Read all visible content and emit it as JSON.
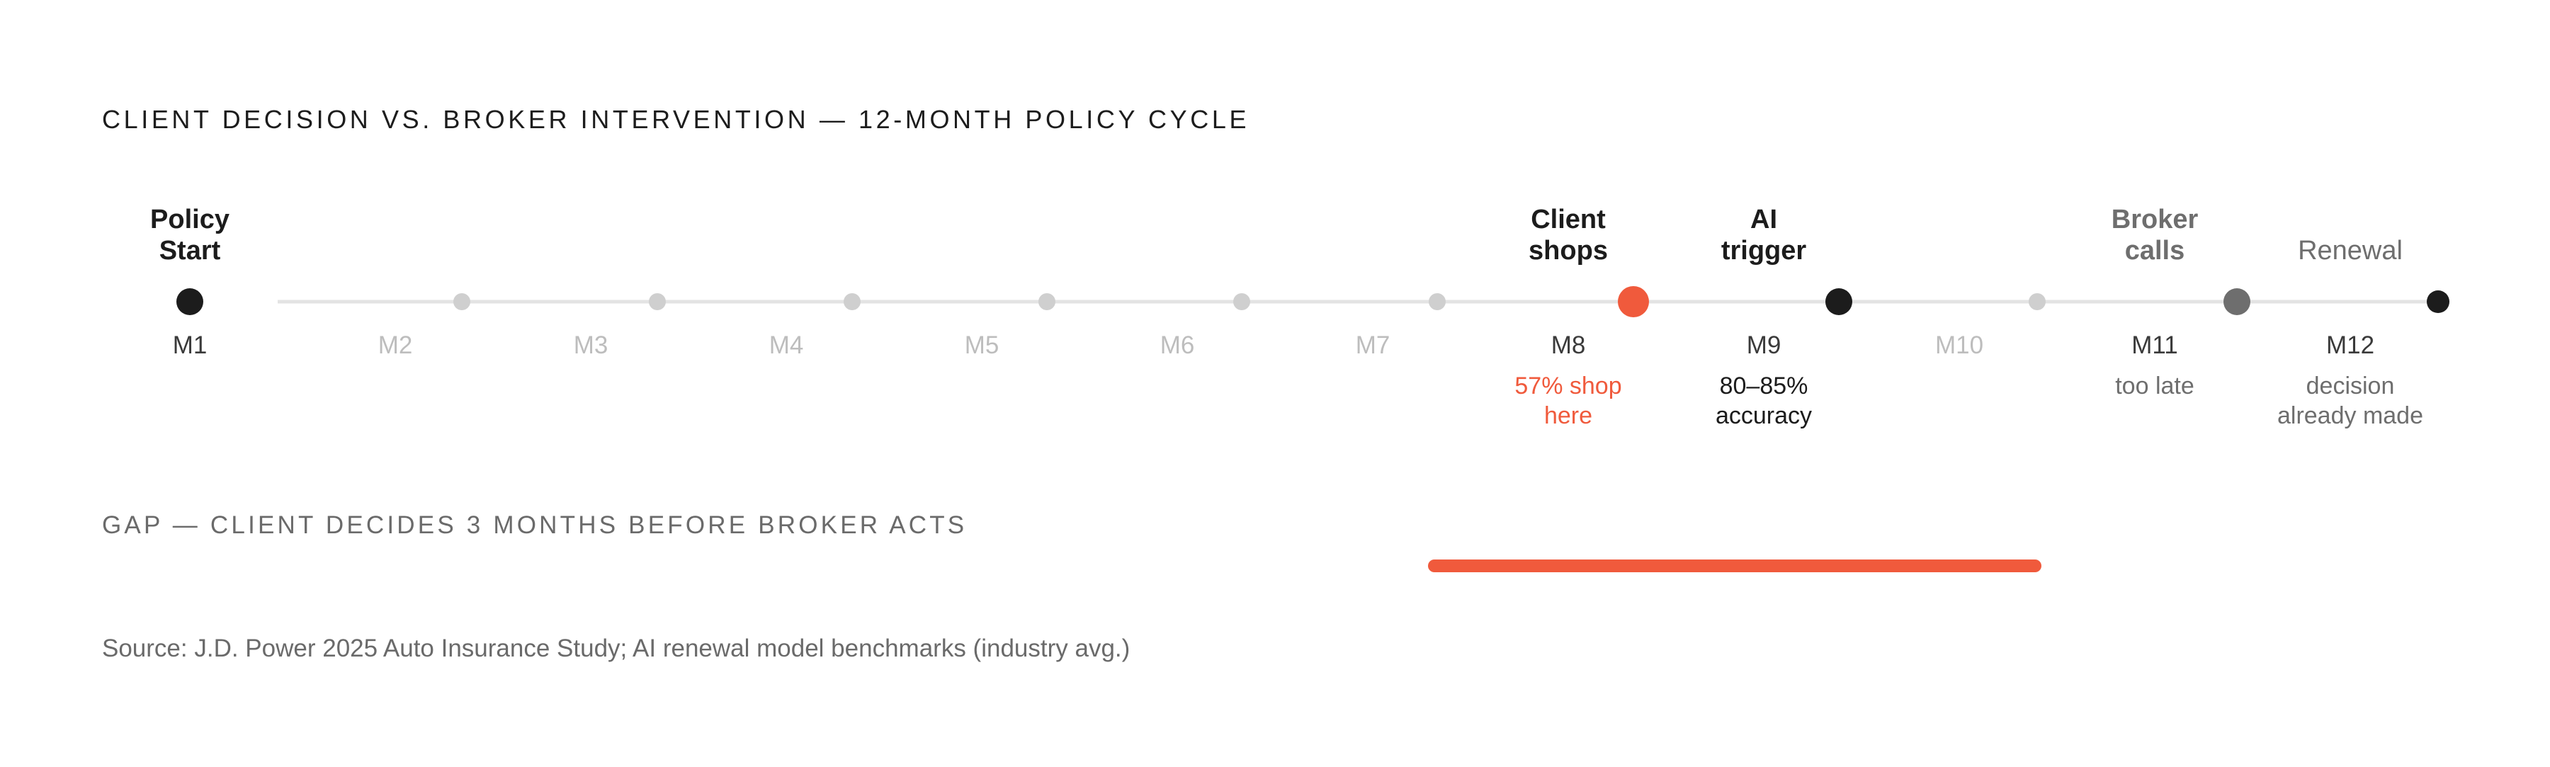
{
  "title": "CLIENT DECISION VS. BROKER INTERVENTION — 12-MONTH POLICY CYCLE",
  "colors": {
    "accent": "#F05A3C",
    "dark": "#1C1C1C",
    "mid_gray": "#6E6E6E",
    "light_gray": "#CFCFCF",
    "line": "#E3E3E3"
  },
  "timeline": {
    "months": [
      {
        "label": "M1",
        "marker": "dark",
        "top_label": "Policy\nStart",
        "top_style": "bold-dark",
        "annotation": "",
        "emphasis": "dark"
      },
      {
        "label": "M2",
        "marker": "small-gray",
        "top_label": "",
        "top_style": "",
        "annotation": "",
        "emphasis": "light"
      },
      {
        "label": "M3",
        "marker": "small-gray",
        "top_label": "",
        "top_style": "",
        "annotation": "",
        "emphasis": "light"
      },
      {
        "label": "M4",
        "marker": "small-gray",
        "top_label": "",
        "top_style": "",
        "annotation": "",
        "emphasis": "light"
      },
      {
        "label": "M5",
        "marker": "small-gray",
        "top_label": "",
        "top_style": "",
        "annotation": "",
        "emphasis": "light"
      },
      {
        "label": "M6",
        "marker": "small-gray",
        "top_label": "",
        "top_style": "",
        "annotation": "",
        "emphasis": "light"
      },
      {
        "label": "M7",
        "marker": "small-gray",
        "top_label": "",
        "top_style": "",
        "annotation": "",
        "emphasis": "light"
      },
      {
        "label": "M8",
        "marker": "accent",
        "top_label": "Client\nshops",
        "top_style": "bold-dark",
        "annotation": "57% shop\nhere",
        "annotation_style": "accent",
        "emphasis": "dark"
      },
      {
        "label": "M9",
        "marker": "dark",
        "top_label": "AI\ntrigger",
        "top_style": "bold-dark",
        "annotation": "80–85%\naccuracy",
        "annotation_style": "dark",
        "emphasis": "dark"
      },
      {
        "label": "M10",
        "marker": "small-gray",
        "top_label": "",
        "top_style": "",
        "annotation": "",
        "emphasis": "light"
      },
      {
        "label": "M11",
        "marker": "mid-gray",
        "top_label": "Broker\ncalls",
        "top_style": "bold-gray",
        "annotation": "too late",
        "annotation_style": "gray",
        "emphasis": "dark"
      },
      {
        "label": "M12",
        "marker": "dark-small",
        "top_label": "Renewal",
        "top_style": "reg-gray",
        "annotation": "decision\nalready made",
        "annotation_style": "gray",
        "emphasis": "dark"
      }
    ]
  },
  "gap": {
    "label": "GAP — CLIENT DECIDES 3 MONTHS BEFORE BROKER ACTS",
    "start_month": 7.2,
    "end_month": 10.2
  },
  "source": "Source: J.D. Power 2025 Auto Insurance Study; AI renewal model benchmarks (industry avg.)"
}
